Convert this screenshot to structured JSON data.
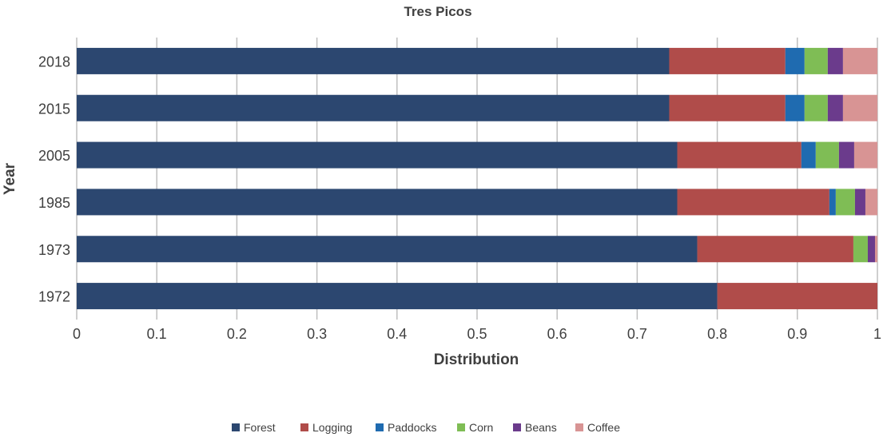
{
  "chart_data": {
    "type": "bar",
    "orientation": "horizontal",
    "stacked": true,
    "title": "Tres Picos",
    "xlabel": "Distribution",
    "ylabel": "Year",
    "xlim": [
      0,
      1
    ],
    "x_ticks": [
      "0",
      "0.1",
      "0.2",
      "0.3",
      "0.4",
      "0.5",
      "0.6",
      "0.7",
      "0.8",
      "0.9",
      "1"
    ],
    "grid": "vertical",
    "legend_position": "bottom",
    "categories": [
      "2018",
      "2015",
      "2005",
      "1985",
      "1973",
      "1972"
    ],
    "series": [
      {
        "name": "Forest",
        "color": "#2c4770",
        "values": [
          0.74,
          0.74,
          0.75,
          0.75,
          0.775,
          0.8
        ]
      },
      {
        "name": "Logging",
        "color": "#b04c4a",
        "values": [
          0.145,
          0.145,
          0.155,
          0.19,
          0.195,
          0.2
        ]
      },
      {
        "name": "Paddocks",
        "color": "#1f6bb0",
        "values": [
          0.024,
          0.024,
          0.018,
          0.008,
          0.0,
          0.0
        ]
      },
      {
        "name": "Corn",
        "color": "#7fbd55",
        "values": [
          0.029,
          0.029,
          0.029,
          0.024,
          0.018,
          0.0
        ]
      },
      {
        "name": "Beans",
        "color": "#6b3b8c",
        "values": [
          0.019,
          0.019,
          0.019,
          0.013,
          0.009,
          0.0
        ]
      },
      {
        "name": "Coffee",
        "color": "#d89494",
        "values": [
          0.043,
          0.043,
          0.029,
          0.015,
          0.003,
          0.0
        ]
      }
    ]
  }
}
